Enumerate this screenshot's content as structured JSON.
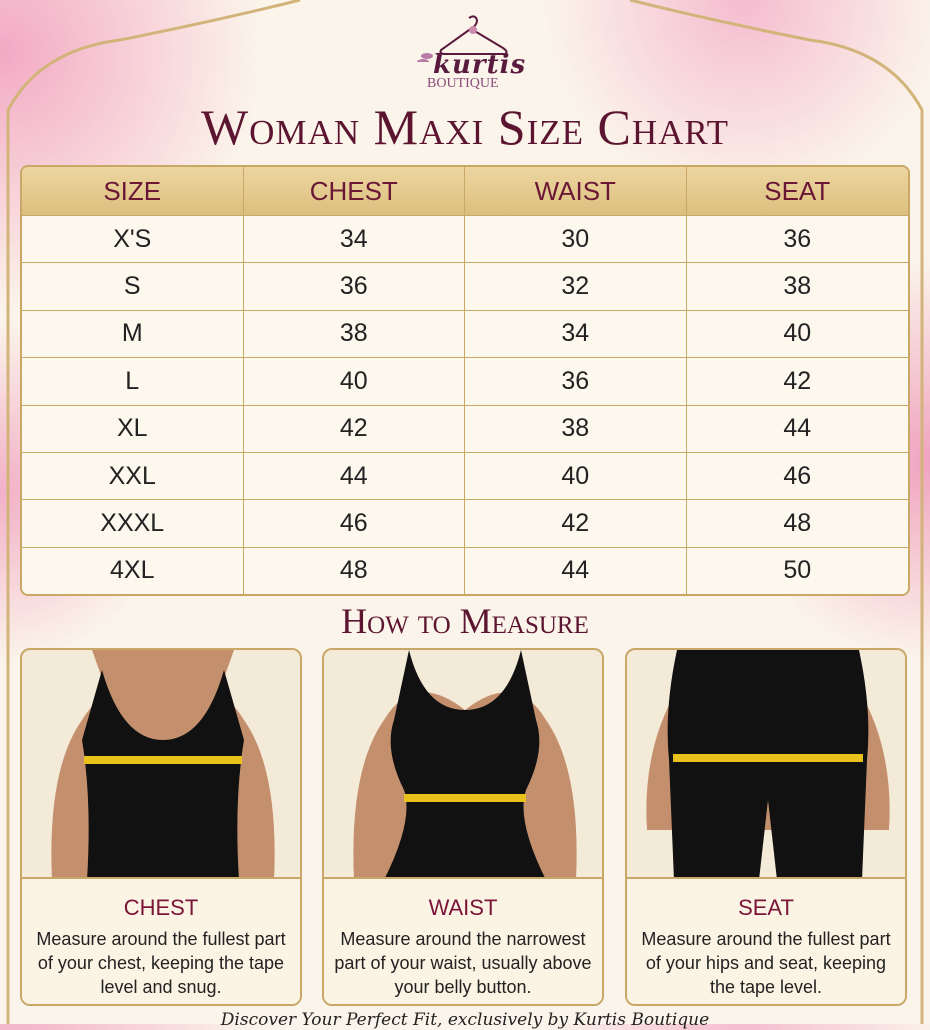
{
  "logo": {
    "brand": "kurtis",
    "sub": "BOUTIQUE"
  },
  "title": "Woman Maxi Size Chart",
  "table": {
    "headers": [
      "SIZE",
      "CHEST",
      "WAIST",
      "SEAT"
    ],
    "rows": [
      [
        "X'S",
        "34",
        "30",
        "36"
      ],
      [
        "S",
        "36",
        "32",
        "38"
      ],
      [
        "M",
        "38",
        "34",
        "40"
      ],
      [
        "L",
        "40",
        "36",
        "42"
      ],
      [
        "XL",
        "42",
        "38",
        "44"
      ],
      [
        "XXL",
        "44",
        "40",
        "46"
      ],
      [
        "XXXL",
        "46",
        "42",
        "48"
      ],
      [
        "4XL",
        "48",
        "44",
        "50"
      ]
    ]
  },
  "how_to_measure": {
    "title": "How to Measure",
    "cards": [
      {
        "label": "CHEST",
        "text": "Measure around the fullest part of your chest, keeping the tape level and snug."
      },
      {
        "label": "WAIST",
        "text": "Measure around the narrowest part of your waist, usually above your belly button."
      },
      {
        "label": "SEAT",
        "text": "Measure around the fullest part of your hips and seat, keeping the tape level."
      }
    ]
  },
  "footer": "Discover Your Perfect Fit, exclusively by Kurtis Boutique",
  "colors": {
    "maroon": "#6b1836",
    "gold": "#dcbf7e",
    "tape": "#e8c21a"
  }
}
